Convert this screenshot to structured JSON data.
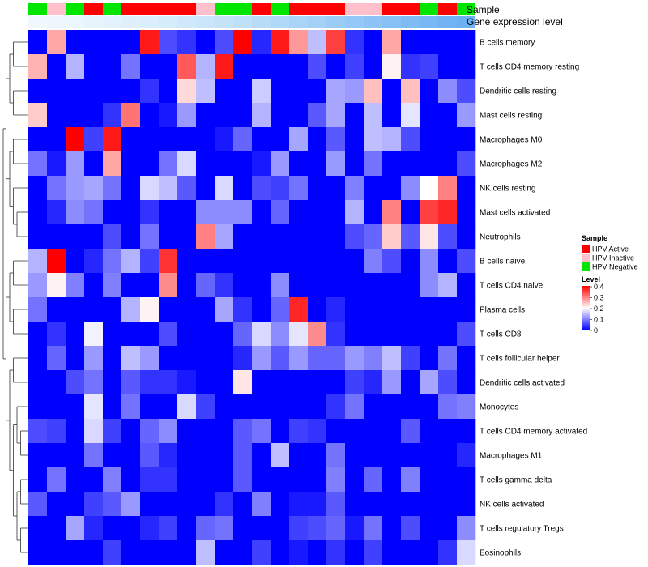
{
  "chart_data": {
    "type": "heatmap",
    "title": "",
    "color_scale": {
      "low": "#0000ff",
      "mid": "#ffffff",
      "high": "#ff0000",
      "min": 0,
      "max": 0.4,
      "ticks": [
        "0.4",
        "0.3",
        "0.2",
        "0.1",
        "0"
      ]
    },
    "annotations": {
      "sample_label": "Sample",
      "level_label": "Gene expression level",
      "sample_colors": [
        "#00e600",
        "#ffc0cb",
        "#00e600",
        "#ff0000",
        "#00e600",
        "#ff0000",
        "#ff0000",
        "#ff0000",
        "#ff0000",
        "#ffc0cb",
        "#00e600",
        "#00e600",
        "#ff0000",
        "#00e600",
        "#ff0000",
        "#ff0000",
        "#ff0000",
        "#ffc0cb",
        "#ffc0cb",
        "#ff0000",
        "#ff0000",
        "#00e600",
        "#ff0000",
        "#00e600"
      ],
      "level_colors": [
        "#f0f8fd",
        "#eef7fd",
        "#ebf6fd",
        "#e7f4fc",
        "#e3f2fc",
        "#dff0fb",
        "#daeefb",
        "#d5ecfb",
        "#d0e9fa",
        "#cae6fa",
        "#c4e3f9",
        "#bee0f9",
        "#b7dcf8",
        "#b0d8f8",
        "#a9d4f7",
        "#a2d0f7",
        "#9bccf6",
        "#94c8f6",
        "#8dc4f5",
        "#86c0f5",
        "#7fbcf4",
        "#78b8f4",
        "#72b4f3",
        "#6db1f3"
      ]
    },
    "rows": [
      "B cells memory",
      "T cells CD4 memory resting",
      "Dendritic cells resting",
      "Mast cells resting",
      "Macrophages M0",
      "Macrophages M2",
      "NK cells resting",
      "Mast cells activated",
      "Neutrophils",
      "B cells naive",
      "T cells CD4 naive",
      "Plasma cells",
      "T cells CD8",
      "T cells follicular helper",
      "Dendritic cells activated",
      "Monocytes",
      "T cells CD4 memory activated",
      "Macrophages M1",
      "T cells gamma delta",
      "NK cells activated",
      "T cells regulatory  Tregs",
      "Eosinophils"
    ],
    "values": [
      [
        0.0,
        0.27,
        0.0,
        0.0,
        0.0,
        0.0,
        0.38,
        0.06,
        0.04,
        0.0,
        0.06,
        0.4,
        0.03,
        0.38,
        0.28,
        0.15,
        0.35,
        0.04,
        0.0,
        0.27,
        0.0,
        0.0,
        0.0,
        0.0
      ],
      [
        0.26,
        0.0,
        0.14,
        0.0,
        0.0,
        0.09,
        0.0,
        0.0,
        0.33,
        0.14,
        0.38,
        0.0,
        0.0,
        0.0,
        0.0,
        0.06,
        0.0,
        0.05,
        0.0,
        0.21,
        0.04,
        0.05,
        0.0,
        0.0
      ],
      [
        0.0,
        0.0,
        0.0,
        0.0,
        0.0,
        0.0,
        0.04,
        0.0,
        0.23,
        0.15,
        0.0,
        0.0,
        0.16,
        0.0,
        0.0,
        0.0,
        0.13,
        0.12,
        0.25,
        0.0,
        0.25,
        0.0,
        0.11,
        0.06
      ],
      [
        0.24,
        0.0,
        0.0,
        0.0,
        0.04,
        0.31,
        0.0,
        0.02,
        0.12,
        0.0,
        0.0,
        0.0,
        0.14,
        0.0,
        0.0,
        0.07,
        0.13,
        0.0,
        0.15,
        0.0,
        0.18,
        0.0,
        0.0,
        0.12
      ],
      [
        0.0,
        0.0,
        0.4,
        0.05,
        0.38,
        0.0,
        0.0,
        0.0,
        0.0,
        0.0,
        0.02,
        0.08,
        0.0,
        0.0,
        0.13,
        0.0,
        0.07,
        0.0,
        0.15,
        0.14,
        0.06,
        0.0,
        0.0,
        0.0
      ],
      [
        0.09,
        0.02,
        0.12,
        0.0,
        0.27,
        0.0,
        0.0,
        0.09,
        0.17,
        0.0,
        0.0,
        0.0,
        0.02,
        0.12,
        0.0,
        0.0,
        0.12,
        0.0,
        0.09,
        0.0,
        0.0,
        0.0,
        0.0,
        0.06
      ],
      [
        0.0,
        0.09,
        0.12,
        0.13,
        0.09,
        0.0,
        0.17,
        0.15,
        0.07,
        0.0,
        0.17,
        0.0,
        0.06,
        0.05,
        0.09,
        0.0,
        0.0,
        0.1,
        0.0,
        0.0,
        0.11,
        0.2,
        0.3,
        0.0
      ],
      [
        0.0,
        0.03,
        0.11,
        0.09,
        0.0,
        0.0,
        0.04,
        0.0,
        0.0,
        0.11,
        0.11,
        0.11,
        0.0,
        0.08,
        0.0,
        0.0,
        0.0,
        0.14,
        0.0,
        0.3,
        0.0,
        0.35,
        0.37,
        0.0
      ],
      [
        0.0,
        0.0,
        0.0,
        0.0,
        0.06,
        0.0,
        0.09,
        0.0,
        0.0,
        0.3,
        0.13,
        0.0,
        0.0,
        0.0,
        0.0,
        0.0,
        0.0,
        0.06,
        0.08,
        0.24,
        0.07,
        0.22,
        0.06,
        0.0
      ],
      [
        0.14,
        0.4,
        0.0,
        0.03,
        0.09,
        0.14,
        0.05,
        0.36,
        0.0,
        0.0,
        0.0,
        0.0,
        0.0,
        0.0,
        0.0,
        0.0,
        0.0,
        0.0,
        0.1,
        0.06,
        0.0,
        0.11,
        0.0,
        0.06
      ],
      [
        0.12,
        0.21,
        0.1,
        0.0,
        0.1,
        0.0,
        0.0,
        0.29,
        0.0,
        0.08,
        0.04,
        0.0,
        0.0,
        0.11,
        0.0,
        0.0,
        0.0,
        0.0,
        0.0,
        0.0,
        0.0,
        0.11,
        0.14,
        0.0
      ],
      [
        0.09,
        0.0,
        0.0,
        0.0,
        0.0,
        0.14,
        0.21,
        0.0,
        0.0,
        0.0,
        0.13,
        0.04,
        0.0,
        0.08,
        0.37,
        0.0,
        0.03,
        0.0,
        0.0,
        0.0,
        0.0,
        0.0,
        0.0,
        0.0
      ],
      [
        0.0,
        0.04,
        0.0,
        0.19,
        0.0,
        0.0,
        0.0,
        0.06,
        0.0,
        0.0,
        0.0,
        0.08,
        0.17,
        0.11,
        0.18,
        0.29,
        0.04,
        0.0,
        0.0,
        0.0,
        0.0,
        0.0,
        0.0,
        0.06
      ],
      [
        0.0,
        0.08,
        0.0,
        0.12,
        0.0,
        0.15,
        0.12,
        0.0,
        0.0,
        0.0,
        0.0,
        0.03,
        0.12,
        0.07,
        0.12,
        0.08,
        0.08,
        0.12,
        0.1,
        0.15,
        0.05,
        0.0,
        0.09,
        0.0
      ],
      [
        0.0,
        0.0,
        0.06,
        0.09,
        0.0,
        0.07,
        0.04,
        0.04,
        0.02,
        0.0,
        0.0,
        0.22,
        0.0,
        0.0,
        0.0,
        0.0,
        0.0,
        0.05,
        0.03,
        0.12,
        0.0,
        0.13,
        0.06,
        0.0
      ],
      [
        0.0,
        0.0,
        0.0,
        0.18,
        0.0,
        0.09,
        0.0,
        0.0,
        0.17,
        0.05,
        0.0,
        0.0,
        0.0,
        0.0,
        0.0,
        0.0,
        0.04,
        0.09,
        0.0,
        0.0,
        0.0,
        0.0,
        0.09,
        0.1
      ],
      [
        0.06,
        0.05,
        0.0,
        0.17,
        0.05,
        0.0,
        0.08,
        0.11,
        0.0,
        0.0,
        0.0,
        0.07,
        0.09,
        0.0,
        0.05,
        0.04,
        0.0,
        0.0,
        0.0,
        0.0,
        0.07,
        0.0,
        0.0,
        0.0
      ],
      [
        0.0,
        0.0,
        0.0,
        0.09,
        0.0,
        0.0,
        0.07,
        0.03,
        0.0,
        0.0,
        0.0,
        0.07,
        0.0,
        0.15,
        0.0,
        0.0,
        0.09,
        0.0,
        0.0,
        0.0,
        0.0,
        0.0,
        0.0,
        0.03
      ],
      [
        0.0,
        0.09,
        0.0,
        0.0,
        0.1,
        0.0,
        0.04,
        0.04,
        0.0,
        0.0,
        0.0,
        0.07,
        0.0,
        0.0,
        0.0,
        0.0,
        0.1,
        0.0,
        0.08,
        0.0,
        0.1,
        0.0,
        0.0,
        0.0
      ],
      [
        0.07,
        0.0,
        0.0,
        0.05,
        0.07,
        0.12,
        0.0,
        0.0,
        0.0,
        0.0,
        0.04,
        0.0,
        0.1,
        0.0,
        0.02,
        0.02,
        0.07,
        0.0,
        0.0,
        0.0,
        0.0,
        0.0,
        0.0,
        0.0
      ],
      [
        0.0,
        0.0,
        0.13,
        0.03,
        0.0,
        0.0,
        0.03,
        0.05,
        0.0,
        0.08,
        0.09,
        0.0,
        0.0,
        0.0,
        0.05,
        0.06,
        0.08,
        0.02,
        0.09,
        0.0,
        0.06,
        0.0,
        0.0,
        0.11
      ],
      [
        0.0,
        0.0,
        0.0,
        0.0,
        0.05,
        0.0,
        0.0,
        0.0,
        0.0,
        0.15,
        0.0,
        0.0,
        0.05,
        0.0,
        0.02,
        0.0,
        0.04,
        0.0,
        0.05,
        0.0,
        0.0,
        0.0,
        0.04,
        0.17
      ]
    ],
    "legend": {
      "sample_title": "Sample",
      "sample_entries": [
        {
          "label": "HPV Active",
          "color": "#ff0000"
        },
        {
          "label": "HPV Inactive",
          "color": "#ffc0cb"
        },
        {
          "label": "HPV Negative",
          "color": "#00e600"
        }
      ],
      "level_title": "Level"
    }
  }
}
